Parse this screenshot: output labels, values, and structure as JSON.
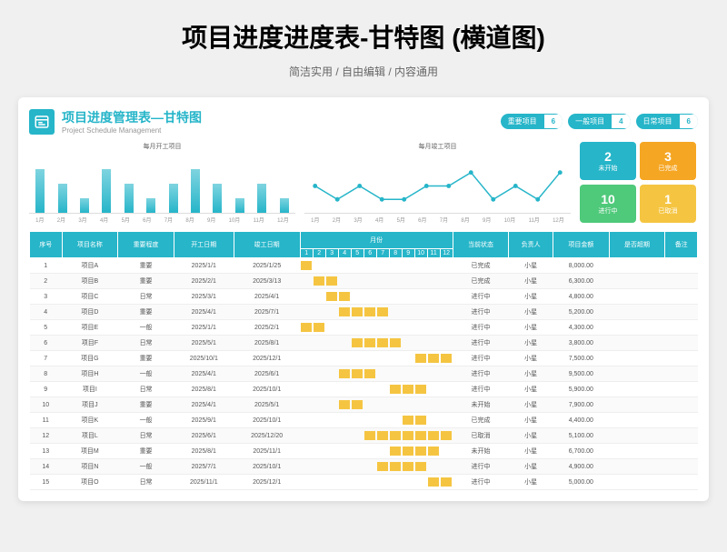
{
  "page": {
    "title": "项目进度进度表-甘特图 (横道图)",
    "subtitle": "简洁实用 / 自由编辑 / 内容通用"
  },
  "header": {
    "title": "项目进度管理表—甘特图",
    "subtitle": "Project Schedule Management"
  },
  "badges": [
    {
      "label": "重要项目",
      "count": 6
    },
    {
      "label": "一般项目",
      "count": 4
    },
    {
      "label": "日常项目",
      "count": 6
    }
  ],
  "stats": [
    {
      "num": 2,
      "label": "未开始",
      "color": "#26b5c9"
    },
    {
      "num": 3,
      "label": "已完成",
      "color": "#f5a623"
    },
    {
      "num": 10,
      "label": "进行中",
      "color": "#4fc97a"
    },
    {
      "num": 1,
      "label": "已取消",
      "color": "#f5c542"
    }
  ],
  "barChart": {
    "title": "每月开工项目",
    "labels": [
      "1月",
      "2月",
      "3月",
      "4月",
      "5月",
      "6月",
      "7月",
      "8月",
      "9月",
      "10月",
      "11月",
      "12月"
    ],
    "values": [
      3,
      2,
      1,
      3,
      2,
      1,
      2,
      3,
      2,
      1,
      2,
      1
    ],
    "max": 4,
    "barColor": "#26b5c9"
  },
  "lineChart": {
    "title": "每月竣工项目",
    "labels": [
      "1月",
      "2月",
      "3月",
      "4月",
      "5月",
      "6月",
      "7月",
      "8月",
      "9月",
      "10月",
      "11月",
      "12月"
    ],
    "values": [
      2,
      1,
      2,
      1,
      1,
      2,
      2,
      3,
      1,
      2,
      1,
      3
    ],
    "max": 4,
    "lineColor": "#26b5c9"
  },
  "columns": [
    "序号",
    "项目名称",
    "重要程度",
    "开工日期",
    "竣工日期",
    "月份",
    "当前状态",
    "负责人",
    "项目金额",
    "是否超期",
    "备注"
  ],
  "months": [
    "1",
    "2",
    "3",
    "4",
    "5",
    "6",
    "7",
    "8",
    "9",
    "10",
    "11",
    "12"
  ],
  "rows": [
    {
      "no": 1,
      "name": "项目A",
      "pri": "重要",
      "start": "2025/1/1",
      "end": "2025/1/25",
      "gantt": [
        1
      ],
      "status": "已完成",
      "owner": "小星",
      "amount": "8,000.00"
    },
    {
      "no": 2,
      "name": "项目B",
      "pri": "重要",
      "start": "2025/2/1",
      "end": "2025/3/13",
      "gantt": [
        2,
        3
      ],
      "status": "已完成",
      "owner": "小星",
      "amount": "6,300.00"
    },
    {
      "no": 3,
      "name": "项目C",
      "pri": "日常",
      "start": "2025/3/1",
      "end": "2025/4/1",
      "gantt": [
        3,
        4
      ],
      "status": "进行中",
      "owner": "小星",
      "amount": "4,800.00"
    },
    {
      "no": 4,
      "name": "项目D",
      "pri": "重要",
      "start": "2025/4/1",
      "end": "2025/7/1",
      "gantt": [
        4,
        5,
        6,
        7
      ],
      "status": "进行中",
      "owner": "小星",
      "amount": "5,200.00"
    },
    {
      "no": 5,
      "name": "项目E",
      "pri": "一般",
      "start": "2025/1/1",
      "end": "2025/2/1",
      "gantt": [
        1,
        2
      ],
      "status": "进行中",
      "owner": "小星",
      "amount": "4,300.00"
    },
    {
      "no": 6,
      "name": "项目F",
      "pri": "日常",
      "start": "2025/5/1",
      "end": "2025/8/1",
      "gantt": [
        5,
        6,
        7,
        8
      ],
      "status": "进行中",
      "owner": "小星",
      "amount": "3,800.00"
    },
    {
      "no": 7,
      "name": "项目G",
      "pri": "重要",
      "start": "2025/10/1",
      "end": "2025/12/1",
      "gantt": [
        10,
        11,
        12
      ],
      "status": "进行中",
      "owner": "小星",
      "amount": "7,500.00"
    },
    {
      "no": 8,
      "name": "项目H",
      "pri": "一般",
      "start": "2025/4/1",
      "end": "2025/6/1",
      "gantt": [
        4,
        5,
        6
      ],
      "status": "进行中",
      "owner": "小星",
      "amount": "9,500.00"
    },
    {
      "no": 9,
      "name": "项目I",
      "pri": "日常",
      "start": "2025/8/1",
      "end": "2025/10/1",
      "gantt": [
        8,
        9,
        10
      ],
      "status": "进行中",
      "owner": "小星",
      "amount": "5,900.00"
    },
    {
      "no": 10,
      "name": "项目J",
      "pri": "重要",
      "start": "2025/4/1",
      "end": "2025/5/1",
      "gantt": [
        4,
        5
      ],
      "status": "未开始",
      "owner": "小星",
      "amount": "7,900.00"
    },
    {
      "no": 11,
      "name": "项目K",
      "pri": "一般",
      "start": "2025/9/1",
      "end": "2025/10/1",
      "gantt": [
        9,
        10
      ],
      "status": "已完成",
      "owner": "小星",
      "amount": "4,400.00"
    },
    {
      "no": 12,
      "name": "项目L",
      "pri": "日常",
      "start": "2025/6/1",
      "end": "2025/12/20",
      "gantt": [
        6,
        7,
        8,
        9,
        10,
        11,
        12
      ],
      "status": "已取消",
      "owner": "小星",
      "amount": "5,100.00"
    },
    {
      "no": 13,
      "name": "项目M",
      "pri": "重要",
      "start": "2025/8/1",
      "end": "2025/11/1",
      "gantt": [
        8,
        9,
        10,
        11
      ],
      "status": "未开始",
      "owner": "小星",
      "amount": "6,700.00"
    },
    {
      "no": 14,
      "name": "项目N",
      "pri": "一般",
      "start": "2025/7/1",
      "end": "2025/10/1",
      "gantt": [
        7,
        8,
        9,
        10
      ],
      "status": "进行中",
      "owner": "小星",
      "amount": "4,900.00"
    },
    {
      "no": 15,
      "name": "项目O",
      "pri": "日常",
      "start": "2025/11/1",
      "end": "2025/12/1",
      "gantt": [
        11,
        12
      ],
      "status": "进行中",
      "owner": "小星",
      "amount": "5,000.00"
    }
  ],
  "colors": {
    "teal": "#26b5c9",
    "gantt": "#f5c542"
  }
}
